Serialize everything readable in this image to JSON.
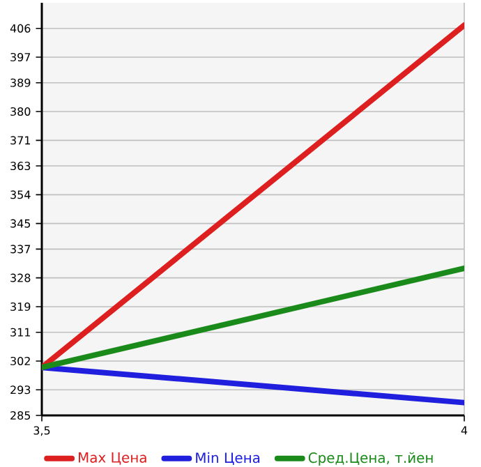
{
  "chart_data": {
    "type": "line",
    "x": [
      3.5,
      4
    ],
    "series": [
      {
        "name": "Max Цена",
        "color": "#dd1f1f",
        "values": [
          300,
          407
        ]
      },
      {
        "name": "Min Цена",
        "color": "#1f1fdd",
        "values": [
          300,
          289
        ]
      },
      {
        "name": "Сред.Цена, т.йен",
        "color": "#1a8a1a",
        "values": [
          300,
          331
        ]
      }
    ],
    "xlim": [
      3.5,
      4.0
    ],
    "xticks": [
      {
        "value": 3.5,
        "label": "3,5"
      },
      4
    ],
    "ylim": [
      285,
      414
    ],
    "yticks": [
      285,
      293,
      302,
      311,
      319,
      328,
      337,
      345,
      354,
      363,
      371,
      380,
      389,
      397,
      406
    ],
    "grid": true,
    "legend": "bottom",
    "marker": "none",
    "line_style": "solid"
  }
}
